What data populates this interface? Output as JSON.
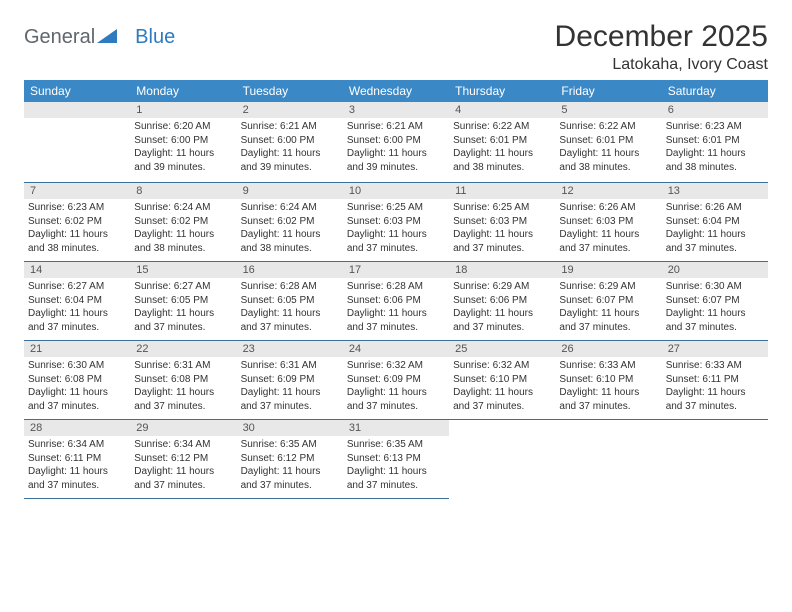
{
  "logo": {
    "part1": "General",
    "part2": "Blue"
  },
  "title": "December 2025",
  "subtitle": "Latokaha, Ivory Coast",
  "colors": {
    "header_bg": "#3b88c6",
    "header_text": "#ffffff",
    "daynum_bg": "#e8e8e8",
    "rule": "#3b6f9c",
    "logo_gray": "#5f666c",
    "logo_blue": "#2f7bbf",
    "text": "#333333"
  },
  "weekdays": [
    "Sunday",
    "Monday",
    "Tuesday",
    "Wednesday",
    "Thursday",
    "Friday",
    "Saturday"
  ],
  "weeks": [
    [
      null,
      {
        "n": "1",
        "sr": "6:20 AM",
        "ss": "6:00 PM",
        "dl": "11 hours and 39 minutes."
      },
      {
        "n": "2",
        "sr": "6:21 AM",
        "ss": "6:00 PM",
        "dl": "11 hours and 39 minutes."
      },
      {
        "n": "3",
        "sr": "6:21 AM",
        "ss": "6:00 PM",
        "dl": "11 hours and 39 minutes."
      },
      {
        "n": "4",
        "sr": "6:22 AM",
        "ss": "6:01 PM",
        "dl": "11 hours and 38 minutes."
      },
      {
        "n": "5",
        "sr": "6:22 AM",
        "ss": "6:01 PM",
        "dl": "11 hours and 38 minutes."
      },
      {
        "n": "6",
        "sr": "6:23 AM",
        "ss": "6:01 PM",
        "dl": "11 hours and 38 minutes."
      }
    ],
    [
      {
        "n": "7",
        "sr": "6:23 AM",
        "ss": "6:02 PM",
        "dl": "11 hours and 38 minutes."
      },
      {
        "n": "8",
        "sr": "6:24 AM",
        "ss": "6:02 PM",
        "dl": "11 hours and 38 minutes."
      },
      {
        "n": "9",
        "sr": "6:24 AM",
        "ss": "6:02 PM",
        "dl": "11 hours and 38 minutes."
      },
      {
        "n": "10",
        "sr": "6:25 AM",
        "ss": "6:03 PM",
        "dl": "11 hours and 37 minutes."
      },
      {
        "n": "11",
        "sr": "6:25 AM",
        "ss": "6:03 PM",
        "dl": "11 hours and 37 minutes."
      },
      {
        "n": "12",
        "sr": "6:26 AM",
        "ss": "6:03 PM",
        "dl": "11 hours and 37 minutes."
      },
      {
        "n": "13",
        "sr": "6:26 AM",
        "ss": "6:04 PM",
        "dl": "11 hours and 37 minutes."
      }
    ],
    [
      {
        "n": "14",
        "sr": "6:27 AM",
        "ss": "6:04 PM",
        "dl": "11 hours and 37 minutes."
      },
      {
        "n": "15",
        "sr": "6:27 AM",
        "ss": "6:05 PM",
        "dl": "11 hours and 37 minutes."
      },
      {
        "n": "16",
        "sr": "6:28 AM",
        "ss": "6:05 PM",
        "dl": "11 hours and 37 minutes."
      },
      {
        "n": "17",
        "sr": "6:28 AM",
        "ss": "6:06 PM",
        "dl": "11 hours and 37 minutes."
      },
      {
        "n": "18",
        "sr": "6:29 AM",
        "ss": "6:06 PM",
        "dl": "11 hours and 37 minutes."
      },
      {
        "n": "19",
        "sr": "6:29 AM",
        "ss": "6:07 PM",
        "dl": "11 hours and 37 minutes."
      },
      {
        "n": "20",
        "sr": "6:30 AM",
        "ss": "6:07 PM",
        "dl": "11 hours and 37 minutes."
      }
    ],
    [
      {
        "n": "21",
        "sr": "6:30 AM",
        "ss": "6:08 PM",
        "dl": "11 hours and 37 minutes."
      },
      {
        "n": "22",
        "sr": "6:31 AM",
        "ss": "6:08 PM",
        "dl": "11 hours and 37 minutes."
      },
      {
        "n": "23",
        "sr": "6:31 AM",
        "ss": "6:09 PM",
        "dl": "11 hours and 37 minutes."
      },
      {
        "n": "24",
        "sr": "6:32 AM",
        "ss": "6:09 PM",
        "dl": "11 hours and 37 minutes."
      },
      {
        "n": "25",
        "sr": "6:32 AM",
        "ss": "6:10 PM",
        "dl": "11 hours and 37 minutes."
      },
      {
        "n": "26",
        "sr": "6:33 AM",
        "ss": "6:10 PM",
        "dl": "11 hours and 37 minutes."
      },
      {
        "n": "27",
        "sr": "6:33 AM",
        "ss": "6:11 PM",
        "dl": "11 hours and 37 minutes."
      }
    ],
    [
      {
        "n": "28",
        "sr": "6:34 AM",
        "ss": "6:11 PM",
        "dl": "11 hours and 37 minutes."
      },
      {
        "n": "29",
        "sr": "6:34 AM",
        "ss": "6:12 PM",
        "dl": "11 hours and 37 minutes."
      },
      {
        "n": "30",
        "sr": "6:35 AM",
        "ss": "6:12 PM",
        "dl": "11 hours and 37 minutes."
      },
      {
        "n": "31",
        "sr": "6:35 AM",
        "ss": "6:13 PM",
        "dl": "11 hours and 37 minutes."
      },
      null,
      null,
      null
    ]
  ],
  "labels": {
    "sunrise": "Sunrise:",
    "sunset": "Sunset:",
    "daylight": "Daylight:"
  }
}
